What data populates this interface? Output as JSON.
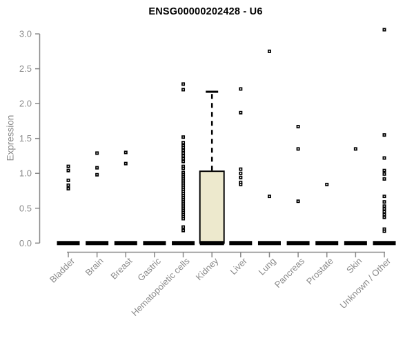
{
  "chart_data": {
    "type": "boxplot",
    "title": "ENSG00000202428 - U6",
    "ylabel": "Expression",
    "xlabel": "",
    "ylim": [
      0.0,
      3.0
    ],
    "grid": false,
    "legend": false,
    "yticks": [
      0.0,
      0.5,
      1.0,
      1.5,
      2.0,
      2.5,
      3.0
    ],
    "ytick_labels": [
      "0.0",
      "0.5",
      "1.0",
      "1.5",
      "2.0",
      "2.5",
      "3.0"
    ],
    "colors": {
      "box_fill": "#EDE9CD",
      "box_stroke": "#000000",
      "median": "#000000",
      "point": "#000000",
      "axis": "#888888",
      "tick_text": "#8a8a8a",
      "title_text": "#000000"
    },
    "categories": [
      {
        "label": "Bladder",
        "median": 0,
        "q1": 0,
        "q3": 0,
        "whisker_low": 0,
        "whisker_high": 0,
        "outliers": [
          1.1,
          1.04,
          0.9,
          0.83,
          0.78
        ]
      },
      {
        "label": "Brain",
        "median": 0,
        "q1": 0,
        "q3": 0,
        "whisker_low": 0,
        "whisker_high": 0,
        "outliers": [
          1.29,
          1.08,
          0.98
        ]
      },
      {
        "label": "Breast",
        "median": 0,
        "q1": 0,
        "q3": 0,
        "whisker_low": 0,
        "whisker_high": 0,
        "outliers": [
          1.3,
          1.14
        ]
      },
      {
        "label": "Gastric",
        "median": 0,
        "q1": 0,
        "q3": 0,
        "whisker_low": 0,
        "whisker_high": 0,
        "outliers": []
      },
      {
        "label": "Hematopoietic cells",
        "median": 0,
        "q1": 0,
        "q3": 0,
        "whisker_low": 0,
        "whisker_high": 0,
        "outliers": [
          2.28,
          2.2,
          1.52,
          1.44,
          1.4,
          1.37,
          1.33,
          1.29,
          1.25,
          1.21,
          1.17,
          1.1,
          1.07,
          1.01,
          0.98,
          0.95,
          0.92,
          0.89,
          0.86,
          0.83,
          0.8,
          0.77,
          0.74,
          0.71,
          0.68,
          0.65,
          0.62,
          0.59,
          0.56,
          0.53,
          0.5,
          0.47,
          0.44,
          0.41,
          0.38,
          0.35,
          0.23,
          0.18
        ]
      },
      {
        "label": "Kidney",
        "median": 0,
        "q1": 0,
        "q3": 1.03,
        "whisker_low": 0,
        "whisker_high": 2.17,
        "outliers": []
      },
      {
        "label": "Liver",
        "median": 0,
        "q1": 0,
        "q3": 0,
        "whisker_low": 0,
        "whisker_high": 0,
        "outliers": [
          2.21,
          1.87,
          1.06,
          1.0,
          0.94,
          0.87,
          0.84
        ]
      },
      {
        "label": "Lung",
        "median": 0,
        "q1": 0,
        "q3": 0,
        "whisker_low": 0,
        "whisker_high": 0,
        "outliers": [
          2.75,
          0.67
        ]
      },
      {
        "label": "Pancreas",
        "median": 0,
        "q1": 0,
        "q3": 0,
        "whisker_low": 0,
        "whisker_high": 0,
        "outliers": [
          1.67,
          1.35,
          0.6
        ]
      },
      {
        "label": "Prostate",
        "median": 0,
        "q1": 0,
        "q3": 0,
        "whisker_low": 0,
        "whisker_high": 0,
        "outliers": [
          0.84
        ]
      },
      {
        "label": "Skin",
        "median": 0,
        "q1": 0,
        "q3": 0,
        "whisker_low": 0,
        "whisker_high": 0,
        "outliers": [
          1.35
        ]
      },
      {
        "label": "Unknown / Other",
        "median": 0,
        "q1": 0,
        "q3": 0,
        "whisker_low": 0,
        "whisker_high": 0,
        "outliers": [
          3.06,
          1.55,
          1.22,
          1.04,
          0.99,
          0.92,
          0.67,
          0.59,
          0.53,
          0.49,
          0.45,
          0.41,
          0.37,
          0.2,
          0.17
        ]
      }
    ]
  }
}
